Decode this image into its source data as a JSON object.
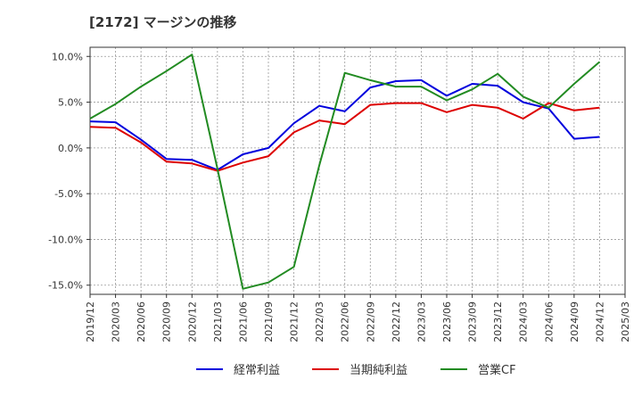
{
  "chart_data": {
    "type": "line",
    "title": "[2172]  マージンの推移",
    "x": [
      "2019/12",
      "2020/03",
      "2020/06",
      "2020/09",
      "2020/12",
      "2021/03",
      "2021/06",
      "2021/09",
      "2021/12",
      "2022/03",
      "2022/06",
      "2022/09",
      "2022/12",
      "2023/03",
      "2023/06",
      "2023/09",
      "2023/12",
      "2024/03",
      "2024/06",
      "2024/09",
      "2024/12",
      "2025/03"
    ],
    "ylim": [
      -16.0,
      11.0
    ],
    "yticks": [
      10.0,
      5.0,
      0.0,
      -5.0,
      -10.0,
      -15.0
    ],
    "ytick_labels": [
      "10.0%",
      "5.0%",
      "0.0%",
      "-5.0%",
      "-10.0%",
      "-15.0%"
    ],
    "grid": true,
    "legend_position": "bottom",
    "series": [
      {
        "name": "経常利益",
        "color": "#0000dd",
        "values": [
          2.9,
          2.8,
          0.9,
          -1.2,
          -1.3,
          -2.4,
          -0.7,
          0.0,
          2.7,
          4.6,
          4.0,
          6.6,
          7.3,
          7.4,
          5.7,
          7.0,
          6.8,
          5.0,
          4.3,
          1.0,
          1.2,
          null
        ]
      },
      {
        "name": "当期純利益",
        "color": "#dd0000",
        "values": [
          2.3,
          2.2,
          0.6,
          -1.5,
          -1.7,
          -2.5,
          -1.6,
          -0.9,
          1.7,
          3.0,
          2.6,
          4.7,
          4.9,
          4.9,
          3.9,
          4.7,
          4.4,
          3.2,
          4.9,
          4.1,
          4.4,
          null
        ]
      },
      {
        "name": "営業CF",
        "color": "#228b22",
        "values": [
          3.2,
          4.8,
          6.7,
          8.4,
          10.2,
          -2.3,
          -15.4,
          -14.7,
          -13.0,
          -1.9,
          8.2,
          7.4,
          6.7,
          6.7,
          5.2,
          6.4,
          8.1,
          5.6,
          4.4,
          7.0,
          9.4,
          null
        ]
      }
    ]
  }
}
